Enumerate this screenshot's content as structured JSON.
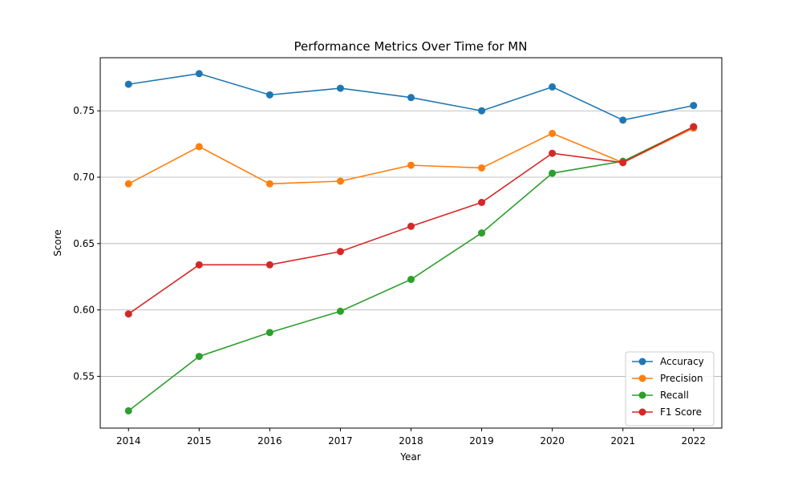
{
  "chart_data": {
    "type": "line",
    "title": "Performance Metrics Over Time for MN",
    "xlabel": "Year",
    "ylabel": "Score",
    "x": [
      2014,
      2015,
      2016,
      2017,
      2018,
      2019,
      2020,
      2021,
      2022
    ],
    "xticks": [
      "2014",
      "2015",
      "2016",
      "2017",
      "2018",
      "2019",
      "2020",
      "2021",
      "2022"
    ],
    "yticks": [
      0.55,
      0.6,
      0.65,
      0.7,
      0.75
    ],
    "ytick_labels": [
      "0.55",
      "0.60",
      "0.65",
      "0.70",
      "0.75"
    ],
    "xlim": [
      2013.6,
      2022.4
    ],
    "ylim": [
      0.511,
      0.79
    ],
    "grid": "y",
    "legend_position": "lower-right",
    "series": [
      {
        "name": "Accuracy",
        "color": "#1f77b4",
        "values": [
          0.77,
          0.778,
          0.762,
          0.767,
          0.76,
          0.75,
          0.768,
          0.743,
          0.754
        ]
      },
      {
        "name": "Precision",
        "color": "#ff7f0e",
        "values": [
          0.695,
          0.723,
          0.695,
          0.697,
          0.709,
          0.707,
          0.733,
          0.711,
          0.737
        ]
      },
      {
        "name": "Recall",
        "color": "#2ca02c",
        "values": [
          0.524,
          0.565,
          0.583,
          0.599,
          0.623,
          0.658,
          0.703,
          0.712,
          0.738
        ]
      },
      {
        "name": "F1 Score",
        "color": "#d62728",
        "values": [
          0.597,
          0.634,
          0.634,
          0.644,
          0.663,
          0.681,
          0.718,
          0.711,
          0.738
        ]
      }
    ]
  }
}
